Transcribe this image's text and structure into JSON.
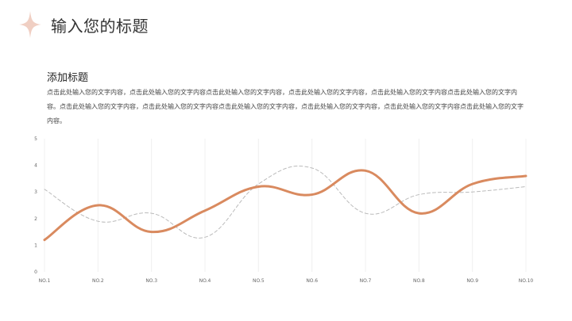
{
  "header": {
    "title": "输入您的标题"
  },
  "section": {
    "subtitle": "添加标题",
    "body": "点击此处输入您的文字内容，点击此处输入您的文字内容点击此处输入您的文字内容，点击此处输入您的文字内容，点击此处输入您的文字内容点击此处输入您的文字内容。点击此处输入您的文字内容，点击此处输入您的文字内容点击此处输入您的文字内容，点击此处输入您的文字内容，点击此处输入您的文字内容点击此处输入您的文字内容。"
  },
  "colors": {
    "accent": "#D98A5F",
    "star": "#F0CFC3",
    "secondary": "#BBBBBB",
    "grid": "#F0F0F0"
  },
  "chart_data": {
    "type": "line",
    "title": "",
    "xlabel": "",
    "ylabel": "",
    "categories": [
      "NO.1",
      "NO.2",
      "NO.3",
      "NO.4",
      "NO.5",
      "NO.6",
      "NO.7",
      "NO.8",
      "NO.9",
      "NO.10"
    ],
    "ylim": [
      0,
      5
    ],
    "yticks": [
      0,
      1,
      2,
      3,
      4,
      5
    ],
    "grid": "vertical",
    "legend": "none",
    "series": [
      {
        "style": "solid",
        "color": "#D98A5F",
        "values": [
          1.2,
          2.5,
          1.5,
          2.3,
          3.2,
          2.9,
          3.8,
          2.2,
          3.3,
          3.6
        ]
      },
      {
        "style": "dashed",
        "color": "#BBBBBB",
        "values": [
          3.1,
          1.9,
          2.2,
          1.3,
          3.3,
          3.9,
          2.2,
          2.9,
          3.0,
          3.2
        ]
      }
    ]
  }
}
